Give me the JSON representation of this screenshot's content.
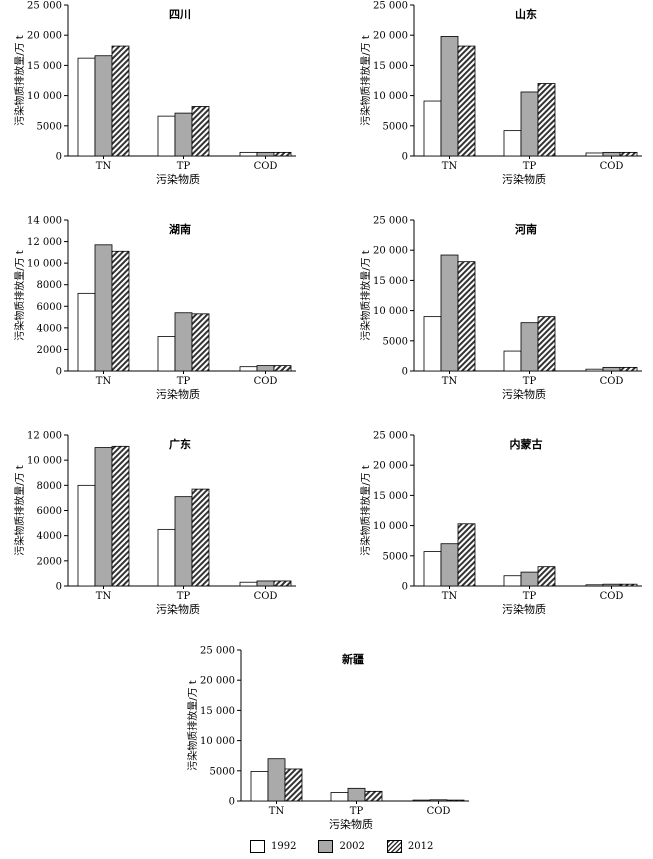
{
  "chart_data": [
    {
      "type": "bar",
      "title": "四川",
      "categories": [
        "TN",
        "TP",
        "COD"
      ],
      "xlabel": "污染物质",
      "ylabel": "污染物质排放量/万 t",
      "ylim": [
        0,
        25000
      ],
      "yticks": [
        "0",
        "5000",
        "10 000",
        "15 000",
        "20 000",
        "25 000"
      ],
      "series": [
        {
          "name": "1992",
          "values": [
            16200,
            6600,
            600
          ]
        },
        {
          "name": "2002",
          "values": [
            16600,
            7100,
            600
          ]
        },
        {
          "name": "2012",
          "values": [
            18200,
            8200,
            600
          ]
        }
      ]
    },
    {
      "type": "bar",
      "title": "山东",
      "categories": [
        "TN",
        "TP",
        "COD"
      ],
      "xlabel": "污染物质",
      "ylabel": "污染物质排放量/万 t",
      "ylim": [
        0,
        25000
      ],
      "yticks": [
        "0",
        "5000",
        "10 000",
        "15 000",
        "20 000",
        "25 000"
      ],
      "series": [
        {
          "name": "1992",
          "values": [
            9100,
            4200,
            500
          ]
        },
        {
          "name": "2002",
          "values": [
            19800,
            10600,
            600
          ]
        },
        {
          "name": "2012",
          "values": [
            18200,
            12000,
            600
          ]
        }
      ]
    },
    {
      "type": "bar",
      "title": "湖南",
      "categories": [
        "TN",
        "TP",
        "COD"
      ],
      "xlabel": "污染物质",
      "ylabel": "污染物质排放量/万 t",
      "ylim": [
        0,
        14000
      ],
      "yticks": [
        "0",
        "2000",
        "4000",
        "6000",
        "8000",
        "10 000",
        "12 000",
        "14 000"
      ],
      "series": [
        {
          "name": "1992",
          "values": [
            7200,
            3200,
            400
          ]
        },
        {
          "name": "2002",
          "values": [
            11700,
            5400,
            500
          ]
        },
        {
          "name": "2012",
          "values": [
            11100,
            5300,
            500
          ]
        }
      ]
    },
    {
      "type": "bar",
      "title": "河南",
      "categories": [
        "TN",
        "TP",
        "COD"
      ],
      "xlabel": "污染物质",
      "ylabel": "污染物质排放量/万 t",
      "ylim": [
        0,
        25000
      ],
      "yticks": [
        "0",
        "5000",
        "10 000",
        "15 000",
        "20 000",
        "25 000"
      ],
      "series": [
        {
          "name": "1992",
          "values": [
            9000,
            3300,
            300
          ]
        },
        {
          "name": "2002",
          "values": [
            19200,
            8000,
            600
          ]
        },
        {
          "name": "2012",
          "values": [
            18100,
            9000,
            600
          ]
        }
      ]
    },
    {
      "type": "bar",
      "title": "广东",
      "categories": [
        "TN",
        "TP",
        "COD"
      ],
      "xlabel": "污染物质",
      "ylabel": "污染物质排放量/万 t",
      "ylim": [
        0,
        12000
      ],
      "yticks": [
        "0",
        "2000",
        "4000",
        "6000",
        "8000",
        "10 000",
        "12 000"
      ],
      "series": [
        {
          "name": "1992",
          "values": [
            8000,
            4500,
            300
          ]
        },
        {
          "name": "2002",
          "values": [
            11000,
            7100,
            400
          ]
        },
        {
          "name": "2012",
          "values": [
            11100,
            7700,
            400
          ]
        }
      ]
    },
    {
      "type": "bar",
      "title": "内蒙古",
      "categories": [
        "TN",
        "TP",
        "COD"
      ],
      "xlabel": "污染物质",
      "ylabel": "污染物质排放量/万 t",
      "ylim": [
        0,
        25000
      ],
      "yticks": [
        "0",
        "5000",
        "10 000",
        "15 000",
        "20 000",
        "25 000"
      ],
      "series": [
        {
          "name": "1992",
          "values": [
            5700,
            1700,
            200
          ]
        },
        {
          "name": "2002",
          "values": [
            7000,
            2300,
            300
          ]
        },
        {
          "name": "2012",
          "values": [
            10300,
            3200,
            300
          ]
        }
      ]
    },
    {
      "type": "bar",
      "title": "新疆",
      "categories": [
        "TN",
        "TP",
        "COD"
      ],
      "xlabel": "污染物质",
      "ylabel": "污染物质排放量/万 t",
      "ylim": [
        0,
        25000
      ],
      "yticks": [
        "0",
        "5000",
        "10 000",
        "15 000",
        "20 000",
        "25 000"
      ],
      "series": [
        {
          "name": "1992",
          "values": [
            4900,
            1400,
            150
          ]
        },
        {
          "name": "2002",
          "values": [
            7000,
            2100,
            200
          ]
        },
        {
          "name": "2012",
          "values": [
            5300,
            1600,
            150
          ]
        }
      ]
    }
  ],
  "legend": {
    "items": [
      "1992",
      "2002",
      "2012"
    ],
    "fills": [
      "#ffffff",
      "#aaaaaa",
      "hatch"
    ]
  }
}
